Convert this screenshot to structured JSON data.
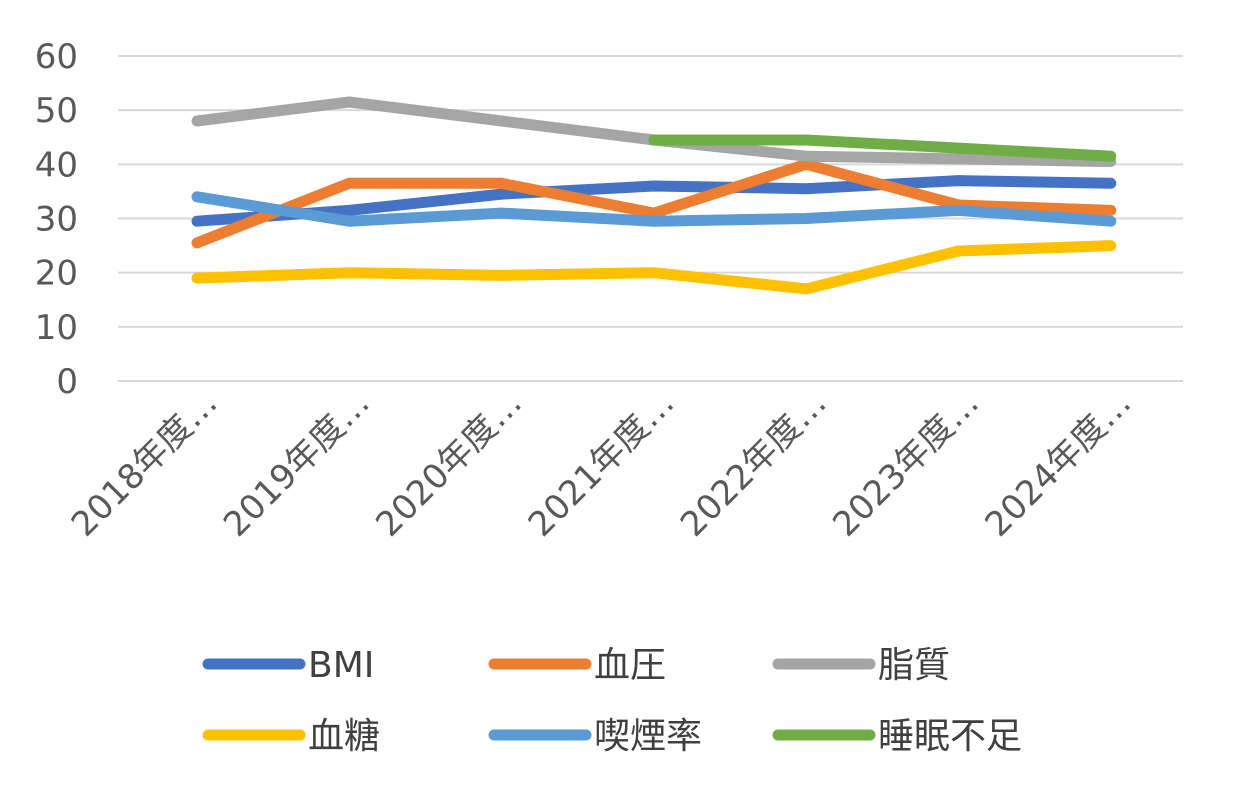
{
  "chart_data": {
    "type": "line",
    "title": "",
    "xlabel": "",
    "ylabel": "",
    "ylim": [
      0,
      60
    ],
    "yticks": [
      0,
      10,
      20,
      30,
      40,
      50,
      60
    ],
    "grid": true,
    "legend_position": "bottom",
    "categories": [
      "2018年度…",
      "2019年度…",
      "2020年度…",
      "2021年度…",
      "2022年度…",
      "2023年度…",
      "2024年度…"
    ],
    "series": [
      {
        "name": "BMI",
        "color": "#4472C4",
        "values": [
          29.5,
          31.5,
          34.5,
          36,
          35.5,
          37,
          36.5
        ]
      },
      {
        "name": "血圧",
        "color": "#ED7D31",
        "values": [
          25.5,
          36.5,
          36.5,
          31,
          40,
          32.5,
          31.5
        ]
      },
      {
        "name": "脂質",
        "color": "#A5A5A5",
        "values": [
          48,
          51.5,
          48,
          44.5,
          41.5,
          41,
          40.5
        ]
      },
      {
        "name": "血糖",
        "color": "#FFC000",
        "values": [
          19,
          20,
          19.5,
          20,
          17,
          24,
          25
        ]
      },
      {
        "name": "喫煙率",
        "color": "#5B9BD5",
        "values": [
          34,
          29.5,
          31,
          29.5,
          30,
          31.5,
          29.5
        ]
      },
      {
        "name": "睡眠不足",
        "color": "#70AD47",
        "values": [
          null,
          null,
          null,
          44.5,
          44.5,
          43,
          41.5
        ]
      }
    ]
  }
}
